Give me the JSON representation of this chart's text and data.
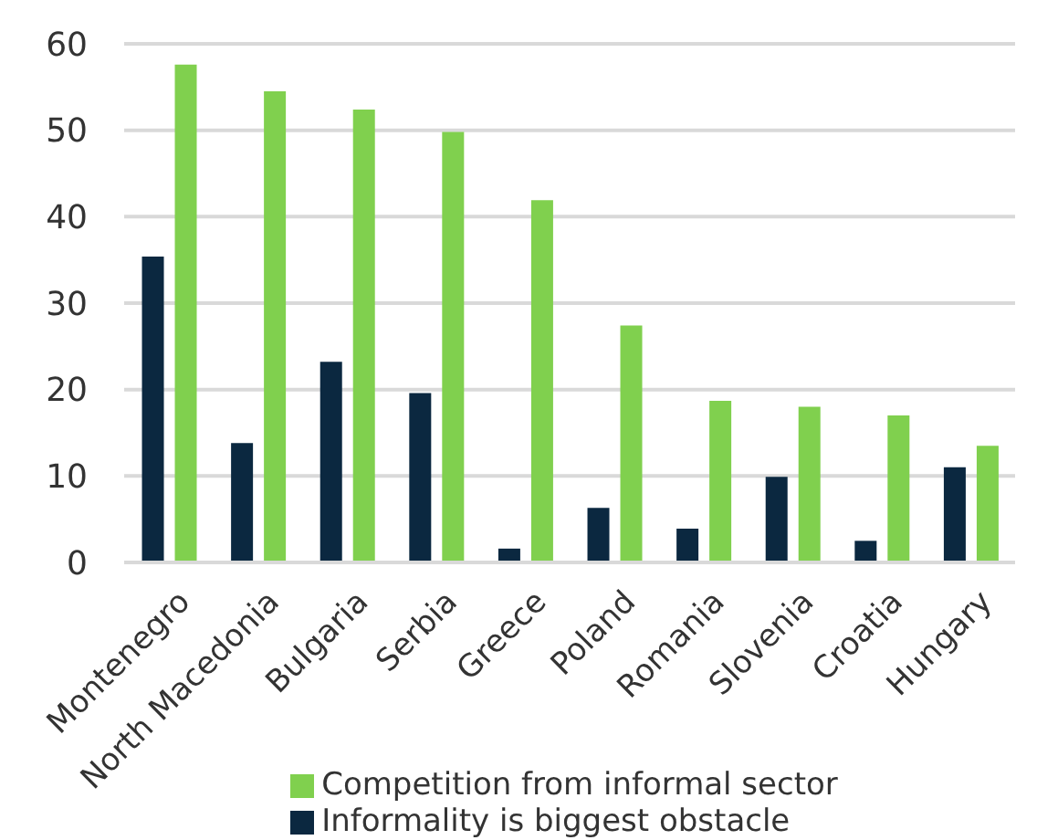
{
  "chart_data": {
    "type": "bar",
    "categories": [
      "Montenegro",
      "North Macedonia",
      "Bulgaria",
      "Serbia",
      "Greece",
      "Poland",
      "Romania",
      "Slovenia",
      "Croatia",
      "Hungary"
    ],
    "series": [
      {
        "name": "Informality is biggest obstacle",
        "color": "#0b2840",
        "values": [
          35.4,
          13.8,
          23.2,
          19.6,
          1.6,
          6.3,
          3.9,
          9.9,
          2.5,
          11.0
        ]
      },
      {
        "name": "Competition from informal sector",
        "color": "#80d04e",
        "values": [
          57.6,
          54.5,
          52.4,
          49.8,
          41.9,
          27.4,
          18.7,
          18.0,
          17.0,
          13.5
        ]
      }
    ],
    "ylim": [
      0,
      60
    ],
    "yticks": [
      0,
      10,
      20,
      30,
      40,
      50,
      60
    ],
    "grid": "y",
    "legend": "bottom"
  }
}
